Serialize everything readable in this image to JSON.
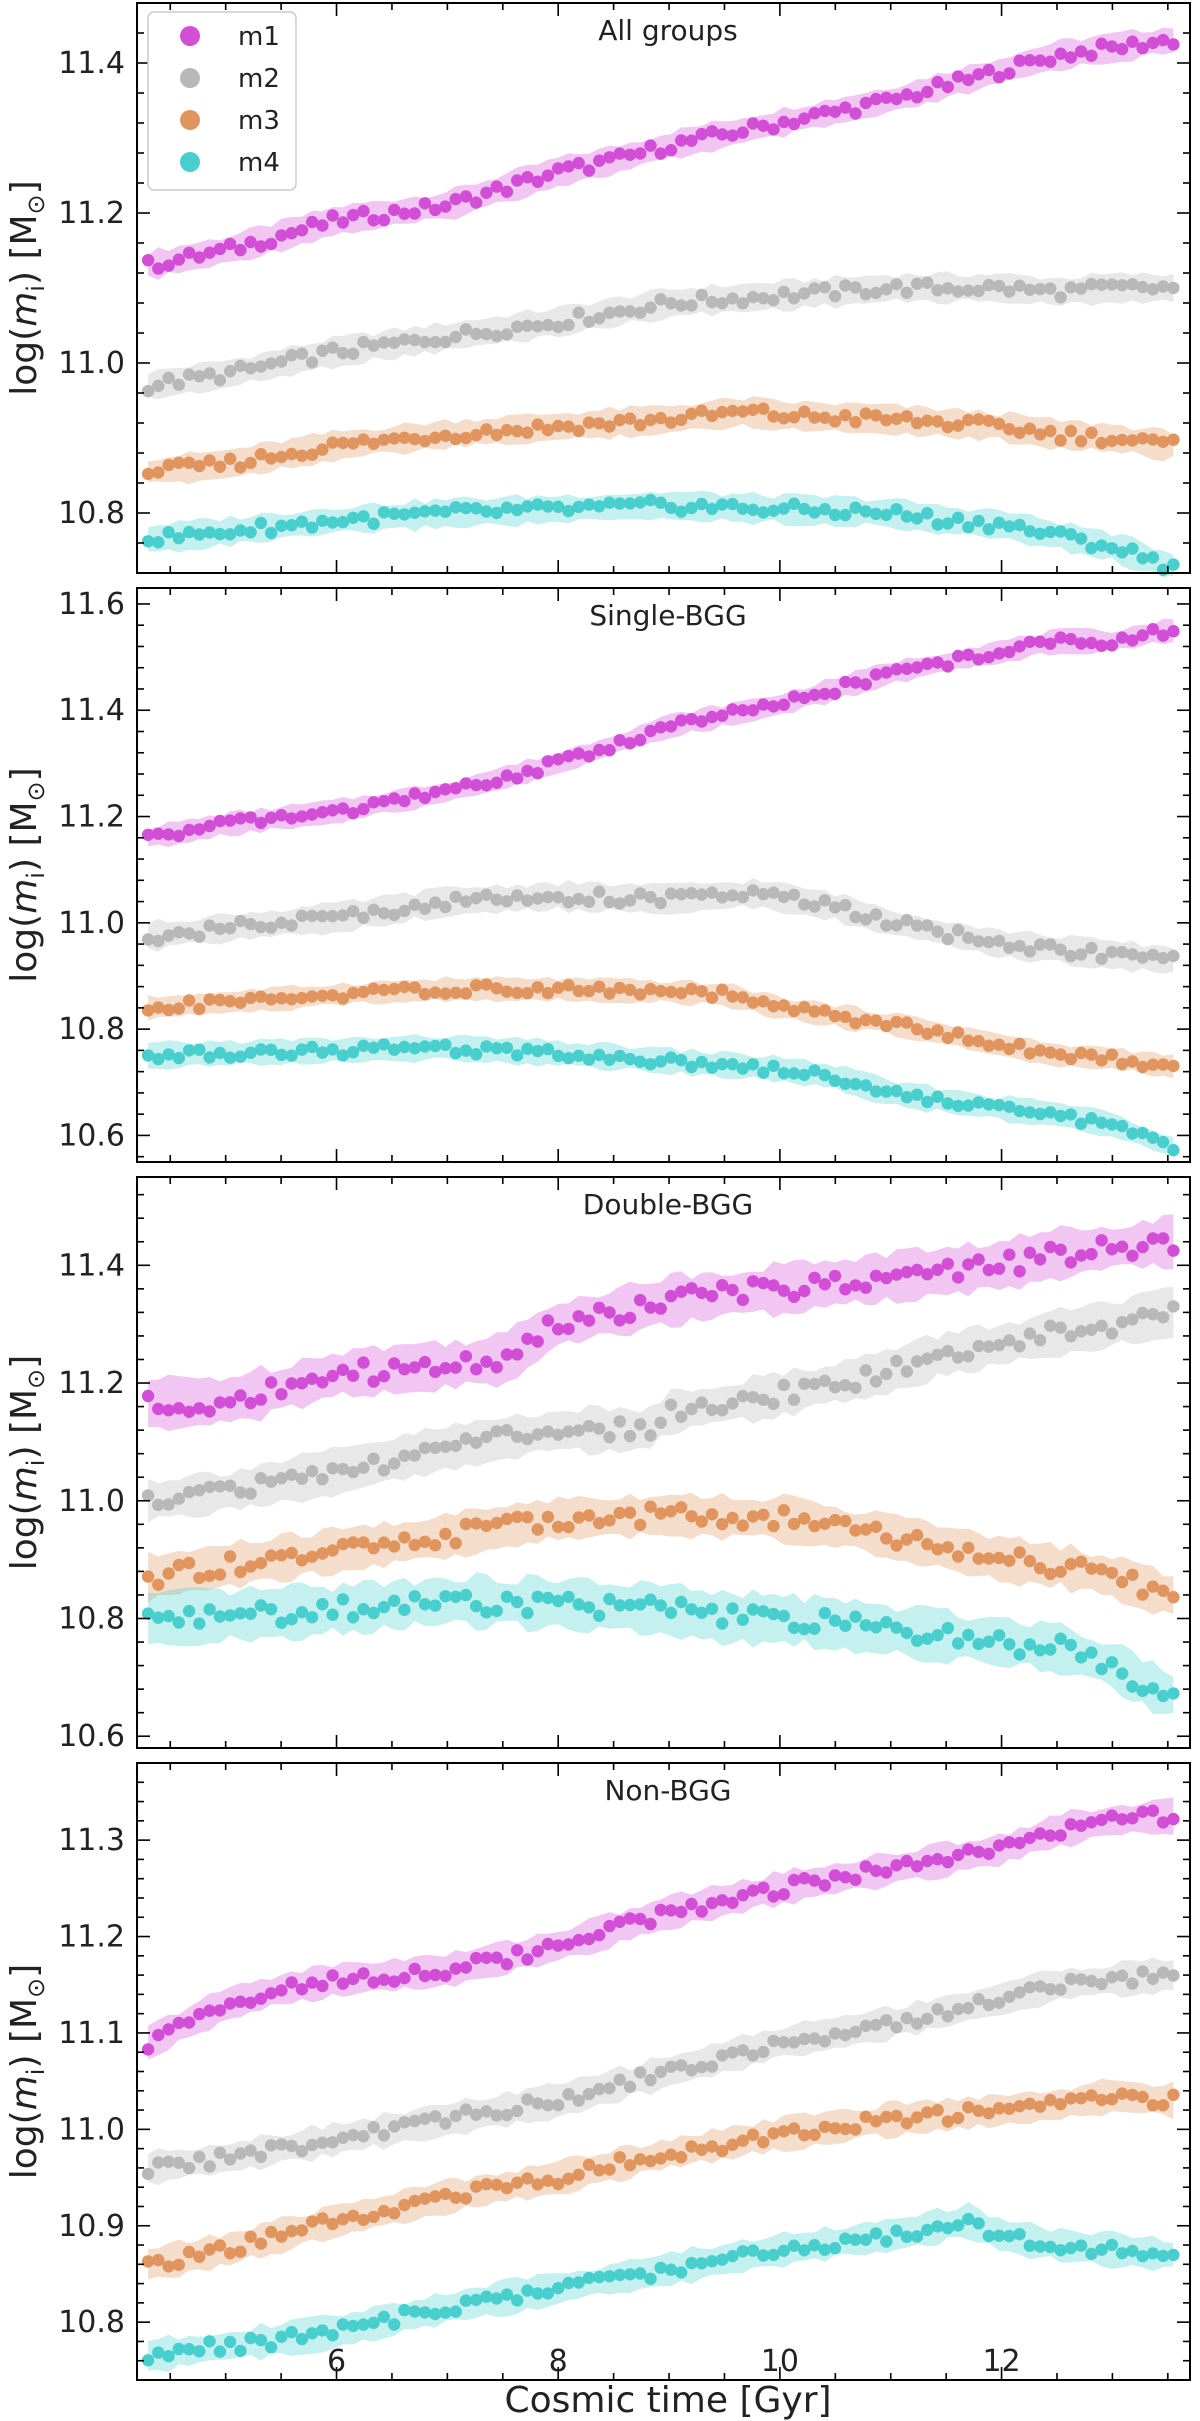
{
  "chart_data": {
    "type": "scatter",
    "xlabel": "Cosmic time [Gyr]",
    "xlim": [
      4.2,
      13.7
    ],
    "xticks": [
      6,
      8,
      10,
      12
    ],
    "legend": {
      "placement": "top-left",
      "entries": [
        {
          "key": "m1",
          "label": "m1",
          "color": "#d24ed6"
        },
        {
          "key": "m2",
          "label": "m2",
          "color": "#b8b8b8"
        },
        {
          "key": "m3",
          "label": "m3",
          "color": "#e0955f"
        },
        {
          "key": "m4",
          "label": "m4",
          "color": "#48cfcd"
        }
      ]
    },
    "band_opacity": 0.32,
    "panels": [
      {
        "title": "All groups",
        "ylabel_text": "log(",
        "ylabel_var": "m",
        "ylabel_sub": "i",
        "ylabel_unit": ") [M",
        "ylabel_sun": "⊙",
        "ylabel_close": "]",
        "ylim": [
          10.72,
          11.48
        ],
        "yticks": [
          10.8,
          11.0,
          11.2,
          11.4
        ],
        "ytick_labels": [
          "10.8",
          "11.0",
          "11.2",
          "11.4"
        ],
        "series": [
          {
            "name": "m1",
            "t": [
              4.3,
              5.0,
              5.5,
              6.0,
              7.0,
              8.0,
              8.5,
              9.0,
              10.0,
              11.0,
              12.0,
              12.5,
              13.0,
              13.5
            ],
            "y": [
              11.13,
              11.15,
              11.17,
              11.19,
              11.21,
              11.255,
              11.27,
              11.29,
              11.32,
              11.35,
              11.39,
              11.41,
              11.42,
              11.43
            ],
            "err": 0.018
          },
          {
            "name": "m2",
            "t": [
              4.3,
              5.0,
              6.0,
              7.0,
              8.0,
              9.0,
              10.0,
              11.0,
              12.0,
              12.5,
              13.0,
              13.5
            ],
            "y": [
              10.97,
              10.985,
              11.015,
              11.035,
              11.055,
              11.08,
              11.09,
              11.1,
              11.1,
              11.095,
              11.1,
              11.1
            ],
            "err": 0.018
          },
          {
            "name": "m3",
            "t": [
              4.3,
              5.0,
              6.0,
              7.0,
              8.0,
              9.0,
              9.7,
              10.0,
              11.0,
              12.0,
              12.5,
              13.0,
              13.5
            ],
            "y": [
              10.855,
              10.865,
              10.89,
              10.905,
              10.915,
              10.925,
              10.935,
              10.93,
              10.925,
              10.915,
              10.905,
              10.9,
              10.89
            ],
            "err": 0.018
          },
          {
            "name": "m4",
            "t": [
              4.3,
              5.0,
              6.0,
              7.0,
              8.0,
              9.0,
              10.0,
              11.0,
              11.5,
              12.0,
              12.5,
              13.0,
              13.5
            ],
            "y": [
              10.765,
              10.775,
              10.79,
              10.8,
              10.805,
              10.81,
              10.805,
              10.8,
              10.79,
              10.785,
              10.77,
              10.755,
              10.73
            ],
            "err": 0.018
          }
        ]
      },
      {
        "title": "Single-BGG",
        "ylabel_text": "log(",
        "ylabel_var": "m",
        "ylabel_sub": "i",
        "ylabel_unit": ") [M",
        "ylabel_sun": "⊙",
        "ylabel_close": "]",
        "ylim": [
          10.55,
          11.63
        ],
        "yticks": [
          10.6,
          10.8,
          11.0,
          11.2,
          11.4,
          11.6
        ],
        "ytick_labels": [
          "10.6",
          "10.8",
          "11.0",
          "11.2",
          "11.4",
          "11.6"
        ],
        "series": [
          {
            "name": "m1",
            "t": [
              4.3,
              5.0,
              6.0,
              7.0,
              8.0,
              9.0,
              10.0,
              11.0,
              12.0,
              12.5,
              13.0,
              13.5
            ],
            "y": [
              11.16,
              11.185,
              11.21,
              11.245,
              11.3,
              11.37,
              11.41,
              11.47,
              11.51,
              11.53,
              11.53,
              11.55
            ],
            "err": 0.02
          },
          {
            "name": "m2",
            "t": [
              4.3,
              5.0,
              6.0,
              7.0,
              8.0,
              9.0,
              9.8,
              10.5,
              11.0,
              11.5,
              12.0,
              12.5,
              13.0,
              13.5
            ],
            "y": [
              10.975,
              10.99,
              11.01,
              11.04,
              11.05,
              11.045,
              11.055,
              11.03,
              11.0,
              10.98,
              10.96,
              10.95,
              10.94,
              10.93
            ],
            "err": 0.025
          },
          {
            "name": "m3",
            "t": [
              4.3,
              5.0,
              6.0,
              7.0,
              8.0,
              9.0,
              9.5,
              10.0,
              11.0,
              12.0,
              12.5,
              13.0,
              13.5
            ],
            "y": [
              10.84,
              10.85,
              10.865,
              10.875,
              10.875,
              10.87,
              10.865,
              10.84,
              10.81,
              10.77,
              10.75,
              10.745,
              10.73
            ],
            "err": 0.02
          },
          {
            "name": "m4",
            "t": [
              4.3,
              5.0,
              6.0,
              7.0,
              8.0,
              9.0,
              10.0,
              10.5,
              11.0,
              11.5,
              12.0,
              12.5,
              13.0,
              13.5
            ],
            "y": [
              10.75,
              10.755,
              10.76,
              10.765,
              10.755,
              10.74,
              10.725,
              10.71,
              10.68,
              10.665,
              10.65,
              10.64,
              10.62,
              10.58
            ],
            "err": 0.022
          }
        ]
      },
      {
        "title": "Double-BGG",
        "ylabel_text": "log(",
        "ylabel_var": "m",
        "ylabel_sub": "i",
        "ylabel_unit": ") [M",
        "ylabel_sun": "⊙",
        "ylabel_close": "]",
        "ylim": [
          10.58,
          11.55
        ],
        "yticks": [
          10.6,
          10.8,
          11.0,
          11.2,
          11.4
        ],
        "ytick_labels": [
          "10.6",
          "10.8",
          "11.0",
          "11.2",
          "11.4"
        ],
        "series": [
          {
            "name": "m1",
            "t": [
              4.3,
              5.0,
              5.5,
              6.0,
              7.0,
              7.5,
              8.0,
              9.0,
              10.0,
              11.0,
              11.5,
              12.0,
              12.5,
              13.0,
              13.5
            ],
            "y": [
              11.165,
              11.17,
              11.19,
              11.215,
              11.23,
              11.24,
              11.3,
              11.34,
              11.36,
              11.38,
              11.39,
              11.4,
              11.42,
              11.43,
              11.44
            ],
            "err": 0.04
          },
          {
            "name": "m2",
            "t": [
              4.3,
              5.0,
              6.0,
              7.0,
              8.0,
              8.8,
              9.0,
              10.0,
              11.0,
              11.5,
              12.0,
              12.5,
              13.0,
              13.5
            ],
            "y": [
              11.0,
              11.015,
              11.05,
              11.09,
              11.12,
              11.12,
              11.15,
              11.18,
              11.22,
              11.25,
              11.265,
              11.285,
              11.3,
              11.32
            ],
            "err": 0.035
          },
          {
            "name": "m3",
            "t": [
              4.3,
              5.0,
              6.0,
              7.0,
              8.0,
              9.0,
              10.0,
              11.0,
              12.0,
              12.5,
              13.0,
              13.5
            ],
            "y": [
              10.87,
              10.89,
              10.915,
              10.94,
              10.97,
              10.975,
              10.97,
              10.94,
              10.9,
              10.89,
              10.87,
              10.84
            ],
            "err": 0.035
          },
          {
            "name": "m4",
            "t": [
              4.3,
              5.0,
              6.0,
              7.0,
              8.0,
              9.0,
              9.5,
              10.0,
              11.0,
              12.0,
              12.5,
              13.0,
              13.5
            ],
            "y": [
              10.8,
              10.805,
              10.815,
              10.83,
              10.825,
              10.815,
              10.8,
              10.8,
              10.78,
              10.76,
              10.75,
              10.72,
              10.67
            ],
            "err": 0.04
          }
        ]
      },
      {
        "title": "Non-BGG",
        "ylabel_text": "log(",
        "ylabel_var": "m",
        "ylabel_sub": "i",
        "ylabel_unit": ") [M",
        "ylabel_sun": "⊙",
        "ylabel_close": "]",
        "ylim": [
          10.74,
          11.38
        ],
        "yticks": [
          10.8,
          10.9,
          11.0,
          11.1,
          11.2,
          11.3
        ],
        "ytick_labels": [
          "10.8",
          "10.9",
          "11.0",
          "11.1",
          "11.2",
          "11.3"
        ],
        "series": [
          {
            "name": "m1",
            "t": [
              4.3,
              5.0,
              5.5,
              6.0,
              7.0,
              8.0,
              9.0,
              10.0,
              11.0,
              12.0,
              12.5,
              13.0,
              13.5
            ],
            "y": [
              11.09,
              11.13,
              11.145,
              11.155,
              11.165,
              11.19,
              11.225,
              11.25,
              11.27,
              11.29,
              11.31,
              11.32,
              11.325
            ],
            "err": 0.016
          },
          {
            "name": "m2",
            "t": [
              4.3,
              5.0,
              6.0,
              7.0,
              8.0,
              9.0,
              10.0,
              11.0,
              12.0,
              12.5,
              13.0,
              13.5
            ],
            "y": [
              10.96,
              10.97,
              10.99,
              11.01,
              11.03,
              11.06,
              11.09,
              11.11,
              11.135,
              11.15,
              11.155,
              11.16
            ],
            "err": 0.016
          },
          {
            "name": "m3",
            "t": [
              4.3,
              5.0,
              6.0,
              7.0,
              8.0,
              9.0,
              10.0,
              11.0,
              12.0,
              12.5,
              13.0,
              13.5
            ],
            "y": [
              10.86,
              10.875,
              10.905,
              10.93,
              10.95,
              10.975,
              10.995,
              11.01,
              11.02,
              11.025,
              11.035,
              11.03
            ],
            "err": 0.016
          },
          {
            "name": "m4",
            "t": [
              4.3,
              5.0,
              6.0,
              7.0,
              8.0,
              9.0,
              10.0,
              11.0,
              11.7,
              12.0,
              12.5,
              13.0,
              13.5
            ],
            "y": [
              10.765,
              10.775,
              10.79,
              10.815,
              10.835,
              10.855,
              10.875,
              10.89,
              10.905,
              10.89,
              10.88,
              10.875,
              10.87
            ],
            "err": 0.016
          }
        ]
      }
    ]
  }
}
